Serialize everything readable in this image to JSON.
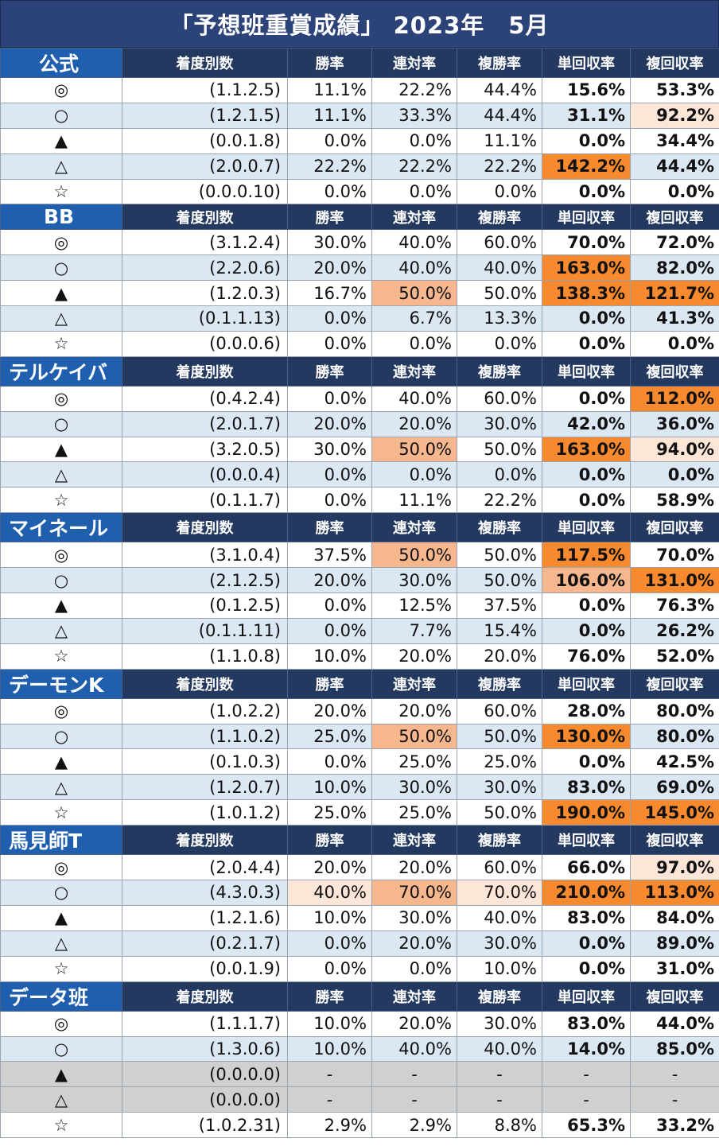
{
  "title": "「予想班重賞成績」 2023年　5月",
  "columns": [
    "着度別数",
    "勝率",
    "連対率",
    "複勝率",
    "単回収率",
    "複回収率"
  ],
  "groups": [
    {
      "team": "公式",
      "rows": [
        {
          "mark": "◎",
          "breakdown": "(1.1.2.5)",
          "win": "11.1%",
          "quinella": "22.2%",
          "show": "44.4%",
          "win_return": "15.6%",
          "show_return": "53.3%",
          "hl": [
            "",
            "",
            "",
            "",
            ""
          ]
        },
        {
          "mark": "○",
          "breakdown": "(1.2.1.5)",
          "win": "11.1%",
          "quinella": "33.3%",
          "show": "44.4%",
          "win_return": "31.1%",
          "show_return": "92.2%",
          "hl": [
            "",
            "",
            "",
            "",
            "light"
          ]
        },
        {
          "mark": "▲",
          "breakdown": "(0.0.1.8)",
          "win": "0.0%",
          "quinella": "0.0%",
          "show": "11.1%",
          "win_return": "0.0%",
          "show_return": "34.4%",
          "hl": [
            "",
            "",
            "",
            "",
            ""
          ]
        },
        {
          "mark": "△",
          "breakdown": "(2.0.0.7)",
          "win": "22.2%",
          "quinella": "22.2%",
          "show": "22.2%",
          "win_return": "142.2%",
          "show_return": "44.4%",
          "hl": [
            "",
            "",
            "",
            "strong",
            ""
          ]
        },
        {
          "mark": "☆",
          "breakdown": "(0.0.0.10)",
          "win": "0.0%",
          "quinella": "0.0%",
          "show": "0.0%",
          "win_return": "0.0%",
          "show_return": "0.0%",
          "hl": [
            "",
            "",
            "",
            "",
            ""
          ]
        }
      ]
    },
    {
      "team": "BB",
      "rows": [
        {
          "mark": "◎",
          "breakdown": "(3.1.2.4)",
          "win": "30.0%",
          "quinella": "40.0%",
          "show": "60.0%",
          "win_return": "70.0%",
          "show_return": "72.0%",
          "hl": [
            "",
            "",
            "",
            "",
            ""
          ]
        },
        {
          "mark": "○",
          "breakdown": "(2.2.0.6)",
          "win": "20.0%",
          "quinella": "40.0%",
          "show": "40.0%",
          "win_return": "163.0%",
          "show_return": "82.0%",
          "hl": [
            "",
            "",
            "",
            "strong",
            ""
          ]
        },
        {
          "mark": "▲",
          "breakdown": "(1.2.0.3)",
          "win": "16.7%",
          "quinella": "50.0%",
          "show": "50.0%",
          "win_return": "138.3%",
          "show_return": "121.7%",
          "hl": [
            "",
            "mid",
            "",
            "strong",
            "strong"
          ]
        },
        {
          "mark": "△",
          "breakdown": "(0.1.1.13)",
          "win": "0.0%",
          "quinella": "6.7%",
          "show": "13.3%",
          "win_return": "0.0%",
          "show_return": "41.3%",
          "hl": [
            "",
            "",
            "",
            "",
            ""
          ]
        },
        {
          "mark": "☆",
          "breakdown": "(0.0.0.6)",
          "win": "0.0%",
          "quinella": "0.0%",
          "show": "0.0%",
          "win_return": "0.0%",
          "show_return": "0.0%",
          "hl": [
            "",
            "",
            "",
            "",
            ""
          ]
        }
      ]
    },
    {
      "team": "テルケイバ",
      "rows": [
        {
          "mark": "◎",
          "breakdown": "(0.4.2.4)",
          "win": "0.0%",
          "quinella": "40.0%",
          "show": "60.0%",
          "win_return": "0.0%",
          "show_return": "112.0%",
          "hl": [
            "",
            "",
            "",
            "",
            "strong"
          ]
        },
        {
          "mark": "○",
          "breakdown": "(2.0.1.7)",
          "win": "20.0%",
          "quinella": "20.0%",
          "show": "30.0%",
          "win_return": "42.0%",
          "show_return": "36.0%",
          "hl": [
            "",
            "",
            "",
            "",
            ""
          ]
        },
        {
          "mark": "▲",
          "breakdown": "(3.2.0.5)",
          "win": "30.0%",
          "quinella": "50.0%",
          "show": "50.0%",
          "win_return": "163.0%",
          "show_return": "94.0%",
          "hl": [
            "",
            "mid",
            "",
            "strong",
            "light"
          ]
        },
        {
          "mark": "△",
          "breakdown": "(0.0.0.4)",
          "win": "0.0%",
          "quinella": "0.0%",
          "show": "0.0%",
          "win_return": "0.0%",
          "show_return": "0.0%",
          "hl": [
            "",
            "",
            "",
            "",
            ""
          ]
        },
        {
          "mark": "☆",
          "breakdown": "(0.1.1.7)",
          "win": "0.0%",
          "quinella": "11.1%",
          "show": "22.2%",
          "win_return": "0.0%",
          "show_return": "58.9%",
          "hl": [
            "",
            "",
            "",
            "",
            ""
          ]
        }
      ]
    },
    {
      "team": "マイネール",
      "rows": [
        {
          "mark": "◎",
          "breakdown": "(3.1.0.4)",
          "win": "37.5%",
          "quinella": "50.0%",
          "show": "50.0%",
          "win_return": "117.5%",
          "show_return": "70.0%",
          "hl": [
            "",
            "mid",
            "",
            "strong",
            ""
          ]
        },
        {
          "mark": "○",
          "breakdown": "(2.1.2.5)",
          "win": "20.0%",
          "quinella": "30.0%",
          "show": "50.0%",
          "win_return": "106.0%",
          "show_return": "131.0%",
          "hl": [
            "",
            "",
            "",
            "mid",
            "strong"
          ]
        },
        {
          "mark": "▲",
          "breakdown": "(0.1.2.5)",
          "win": "0.0%",
          "quinella": "12.5%",
          "show": "37.5%",
          "win_return": "0.0%",
          "show_return": "76.3%",
          "hl": [
            "",
            "",
            "",
            "",
            ""
          ]
        },
        {
          "mark": "△",
          "breakdown": "(0.1.1.11)",
          "win": "0.0%",
          "quinella": "7.7%",
          "show": "15.4%",
          "win_return": "0.0%",
          "show_return": "26.2%",
          "hl": [
            "",
            "",
            "",
            "",
            ""
          ]
        },
        {
          "mark": "☆",
          "breakdown": "(1.1.0.8)",
          "win": "10.0%",
          "quinella": "20.0%",
          "show": "20.0%",
          "win_return": "76.0%",
          "show_return": "52.0%",
          "hl": [
            "",
            "",
            "",
            "",
            ""
          ]
        }
      ]
    },
    {
      "team": "デーモンK",
      "rows": [
        {
          "mark": "◎",
          "breakdown": "(1.0.2.2)",
          "win": "20.0%",
          "quinella": "20.0%",
          "show": "60.0%",
          "win_return": "28.0%",
          "show_return": "80.0%",
          "hl": [
            "",
            "",
            "",
            "",
            ""
          ]
        },
        {
          "mark": "○",
          "breakdown": "(1.1.0.2)",
          "win": "25.0%",
          "quinella": "50.0%",
          "show": "50.0%",
          "win_return": "130.0%",
          "show_return": "80.0%",
          "hl": [
            "",
            "mid",
            "",
            "strong",
            ""
          ]
        },
        {
          "mark": "▲",
          "breakdown": "(0.1.0.3)",
          "win": "0.0%",
          "quinella": "25.0%",
          "show": "25.0%",
          "win_return": "0.0%",
          "show_return": "42.5%",
          "hl": [
            "",
            "",
            "",
            "",
            ""
          ]
        },
        {
          "mark": "△",
          "breakdown": "(1.2.0.7)",
          "win": "10.0%",
          "quinella": "30.0%",
          "show": "30.0%",
          "win_return": "83.0%",
          "show_return": "69.0%",
          "hl": [
            "",
            "",
            "",
            "",
            ""
          ]
        },
        {
          "mark": "☆",
          "breakdown": "(1.0.1.2)",
          "win": "25.0%",
          "quinella": "25.0%",
          "show": "50.0%",
          "win_return": "190.0%",
          "show_return": "145.0%",
          "hl": [
            "",
            "",
            "",
            "strong",
            "strong"
          ]
        }
      ]
    },
    {
      "team": "馬見師T",
      "rows": [
        {
          "mark": "◎",
          "breakdown": "(2.0.4.4)",
          "win": "20.0%",
          "quinella": "20.0%",
          "show": "60.0%",
          "win_return": "66.0%",
          "show_return": "97.0%",
          "hl": [
            "",
            "",
            "",
            "",
            "light"
          ]
        },
        {
          "mark": "○",
          "breakdown": "(4.3.0.3)",
          "win": "40.0%",
          "quinella": "70.0%",
          "show": "70.0%",
          "win_return": "210.0%",
          "show_return": "113.0%",
          "hl": [
            "light",
            "mid",
            "light",
            "strong",
            "strong"
          ]
        },
        {
          "mark": "▲",
          "breakdown": "(1.2.1.6)",
          "win": "10.0%",
          "quinella": "30.0%",
          "show": "40.0%",
          "win_return": "83.0%",
          "show_return": "84.0%",
          "hl": [
            "",
            "",
            "",
            "",
            ""
          ]
        },
        {
          "mark": "△",
          "breakdown": "(0.2.1.7)",
          "win": "0.0%",
          "quinella": "20.0%",
          "show": "30.0%",
          "win_return": "0.0%",
          "show_return": "89.0%",
          "hl": [
            "",
            "",
            "",
            "",
            ""
          ]
        },
        {
          "mark": "☆",
          "breakdown": "(0.0.1.9)",
          "win": "0.0%",
          "quinella": "0.0%",
          "show": "10.0%",
          "win_return": "0.0%",
          "show_return": "31.0%",
          "hl": [
            "",
            "",
            "",
            "",
            ""
          ]
        }
      ]
    },
    {
      "team": "データ班",
      "rows": [
        {
          "mark": "◎",
          "breakdown": "(1.1.1.7)",
          "win": "10.0%",
          "quinella": "20.0%",
          "show": "30.0%",
          "win_return": "83.0%",
          "show_return": "44.0%",
          "hl": [
            "",
            "",
            "",
            "",
            ""
          ]
        },
        {
          "mark": "○",
          "breakdown": "(1.3.0.6)",
          "win": "10.0%",
          "quinella": "40.0%",
          "show": "40.0%",
          "win_return": "14.0%",
          "show_return": "85.0%",
          "hl": [
            "",
            "",
            "",
            "",
            ""
          ]
        },
        {
          "mark": "▲",
          "breakdown": "(0.0.0.0)",
          "win": "-",
          "quinella": "-",
          "show": "-",
          "win_return": "-",
          "show_return": "-",
          "gray": true,
          "hl": [
            "",
            "",
            "",
            "",
            ""
          ]
        },
        {
          "mark": "△",
          "breakdown": "(0.0.0.0)",
          "win": "-",
          "quinella": "-",
          "show": "-",
          "win_return": "-",
          "show_return": "-",
          "gray": true,
          "hl": [
            "",
            "",
            "",
            "",
            ""
          ]
        },
        {
          "mark": "☆",
          "breakdown": "(1.0.2.31)",
          "win": "2.9%",
          "quinella": "2.9%",
          "show": "8.8%",
          "win_return": "65.3%",
          "show_return": "33.2%",
          "hl": [
            "",
            "",
            "",
            "",
            ""
          ]
        }
      ]
    }
  ]
}
